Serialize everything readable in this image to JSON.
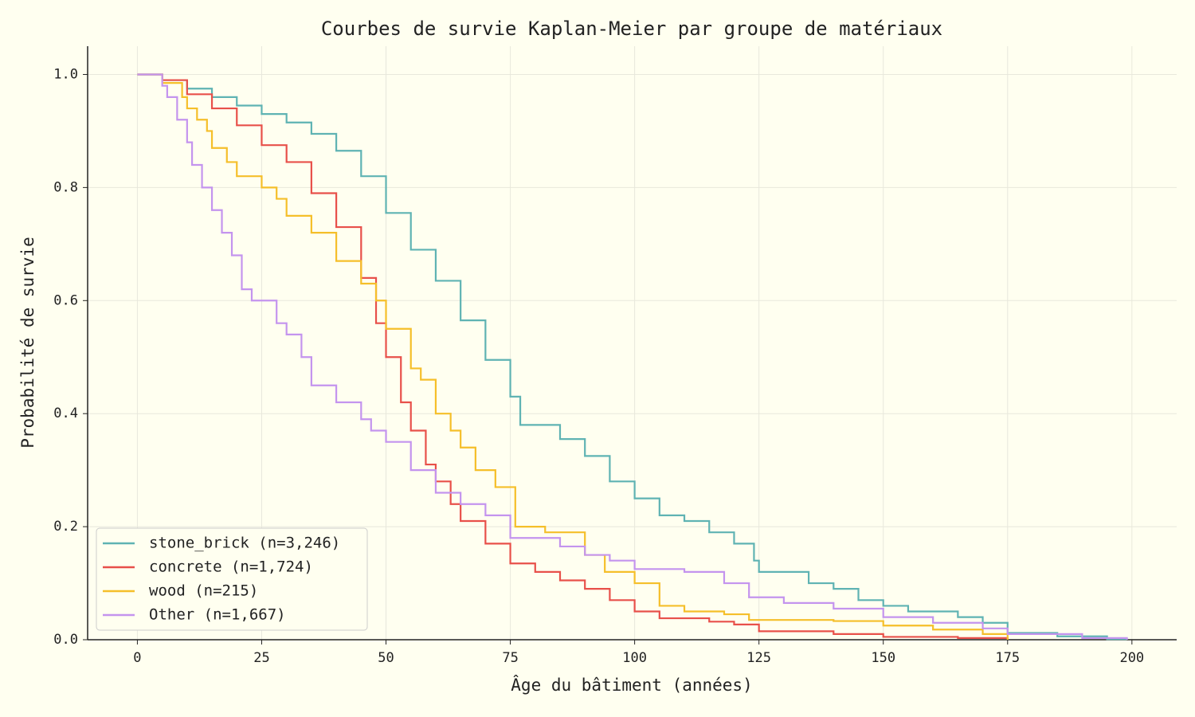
{
  "chart_data": {
    "type": "line",
    "step": "post",
    "title": "Courbes de survie Kaplan-Meier par groupe de matériaux",
    "xlabel": "Âge du bâtiment (années)",
    "ylabel": "Probabilité de survie",
    "xlim": [
      -10,
      209
    ],
    "ylim": [
      0,
      1.05
    ],
    "xticks": [
      0,
      25,
      50,
      75,
      100,
      125,
      150,
      175,
      200
    ],
    "yticks": [
      {
        "value": 0,
        "label": "0.0"
      },
      0.2,
      0.4,
      0.6,
      0.8,
      {
        "value": 1,
        "label": "1.0"
      }
    ],
    "grid": true,
    "legend": "lower left",
    "series": [
      {
        "name": "stone_brick (n=3,246)",
        "color": "#5fb3b3",
        "x": [
          0,
          5,
          10,
          15,
          20,
          25,
          30,
          35,
          40,
          45,
          50,
          55,
          60,
          65,
          70,
          75,
          77,
          85,
          90,
          95,
          100,
          105,
          110,
          115,
          120,
          124,
          125,
          135,
          140,
          145,
          150,
          155,
          165,
          170,
          175,
          185,
          195,
          199
        ],
        "values": [
          1,
          0.99,
          0.975,
          0.96,
          0.945,
          0.93,
          0.915,
          0.895,
          0.865,
          0.82,
          0.755,
          0.69,
          0.635,
          0.565,
          0.495,
          0.43,
          0.38,
          0.355,
          0.325,
          0.28,
          0.25,
          0.22,
          0.21,
          0.19,
          0.17,
          0.14,
          0.12,
          0.1,
          0.09,
          0.07,
          0.06,
          0.05,
          0.04,
          0.03,
          0.012,
          0.006,
          0.001,
          0
        ]
      },
      {
        "name": "concrete (n=1,724)",
        "color": "#e8504a",
        "x": [
          0,
          5,
          10,
          15,
          20,
          25,
          30,
          35,
          40,
          45,
          48,
          50,
          53,
          55,
          58,
          60,
          63,
          65,
          70,
          75,
          80,
          85,
          90,
          95,
          100,
          105,
          115,
          120,
          125,
          140,
          150,
          165,
          175
        ],
        "values": [
          1,
          0.99,
          0.965,
          0.94,
          0.91,
          0.875,
          0.845,
          0.79,
          0.73,
          0.64,
          0.56,
          0.5,
          0.42,
          0.37,
          0.31,
          0.28,
          0.24,
          0.21,
          0.17,
          0.135,
          0.12,
          0.105,
          0.09,
          0.07,
          0.05,
          0.038,
          0.032,
          0.027,
          0.015,
          0.01,
          0.005,
          0.003,
          0
        ]
      },
      {
        "name": "wood (n=215)",
        "color": "#f5bf2a",
        "x": [
          0,
          5,
          9,
          10,
          12,
          14,
          15,
          18,
          20,
          25,
          28,
          30,
          35,
          40,
          45,
          48,
          50,
          55,
          57,
          60,
          63,
          65,
          68,
          72,
          76,
          82,
          90,
          94,
          100,
          105,
          110,
          118,
          123,
          140,
          150,
          160,
          170,
          175
        ],
        "values": [
          1,
          0.985,
          0.96,
          0.94,
          0.92,
          0.9,
          0.87,
          0.845,
          0.82,
          0.8,
          0.78,
          0.75,
          0.72,
          0.67,
          0.63,
          0.6,
          0.55,
          0.48,
          0.46,
          0.4,
          0.37,
          0.34,
          0.3,
          0.27,
          0.2,
          0.19,
          0.15,
          0.12,
          0.1,
          0.06,
          0.05,
          0.045,
          0.035,
          0.033,
          0.025,
          0.018,
          0.01,
          0
        ]
      },
      {
        "name": "Other (n=1,667)",
        "color": "#c494ee",
        "x": [
          0,
          5,
          6,
          8,
          10,
          11,
          13,
          15,
          17,
          19,
          21,
          23,
          28,
          30,
          33,
          35,
          40,
          45,
          47,
          50,
          55,
          60,
          65,
          70,
          75,
          85,
          90,
          95,
          100,
          110,
          118,
          123,
          130,
          140,
          150,
          160,
          170,
          175,
          190,
          199
        ],
        "values": [
          1,
          0.98,
          0.96,
          0.92,
          0.88,
          0.84,
          0.8,
          0.76,
          0.72,
          0.68,
          0.62,
          0.6,
          0.56,
          0.54,
          0.5,
          0.45,
          0.42,
          0.39,
          0.37,
          0.35,
          0.3,
          0.26,
          0.24,
          0.22,
          0.18,
          0.165,
          0.15,
          0.14,
          0.125,
          0.12,
          0.1,
          0.075,
          0.065,
          0.055,
          0.04,
          0.03,
          0.02,
          0.01,
          0.003,
          0
        ]
      }
    ]
  }
}
